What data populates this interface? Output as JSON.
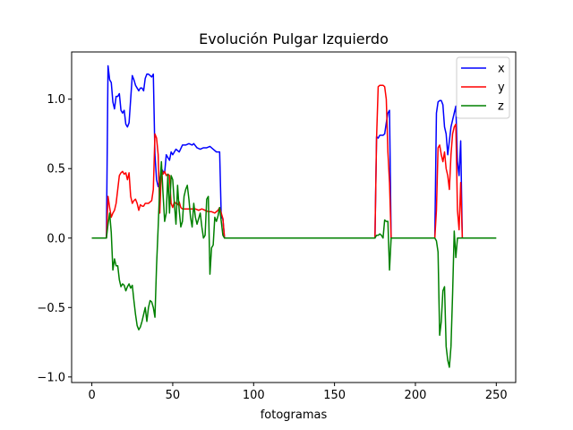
{
  "chart_data": {
    "type": "line",
    "title": "Evolución Pulgar Izquierdo",
    "xlabel": "fotogramas",
    "ylabel": "",
    "xlim": [
      -12.5,
      262
    ],
    "ylim": [
      -1.04,
      1.34
    ],
    "xticks": [
      0,
      50,
      100,
      150,
      200,
      250
    ],
    "yticks": [
      -1.0,
      -0.5,
      0.0,
      0.5,
      1.0
    ],
    "xtick_labels": [
      "0",
      "50",
      "100",
      "150",
      "200",
      "250"
    ],
    "ytick_labels": [
      "−1.0",
      "−0.5",
      "0.0",
      "0.5",
      "1.0"
    ],
    "grid": false,
    "legend_position": "top-right",
    "series": [
      {
        "name": "x",
        "color": "#0000ff",
        "points": [
          [
            0,
            0
          ],
          [
            9,
            0
          ],
          [
            10,
            1.24
          ],
          [
            11,
            1.14
          ],
          [
            12,
            1.12
          ],
          [
            13,
            0.98
          ],
          [
            14,
            0.93
          ],
          [
            15,
            1.02
          ],
          [
            16,
            1.02
          ],
          [
            17,
            1.04
          ],
          [
            18,
            0.92
          ],
          [
            19,
            0.9
          ],
          [
            20,
            0.92
          ],
          [
            21,
            0.82
          ],
          [
            22,
            0.8
          ],
          [
            23,
            0.83
          ],
          [
            24,
            1.0
          ],
          [
            25,
            1.17
          ],
          [
            26,
            1.14
          ],
          [
            27,
            1.1
          ],
          [
            28,
            1.08
          ],
          [
            29,
            1.06
          ],
          [
            30,
            1.08
          ],
          [
            31,
            1.08
          ],
          [
            32,
            1.06
          ],
          [
            33,
            1.15
          ],
          [
            34,
            1.18
          ],
          [
            35,
            1.18
          ],
          [
            36,
            1.17
          ],
          [
            37,
            1.16
          ],
          [
            38,
            1.18
          ],
          [
            39,
            0.6
          ],
          [
            40,
            0.42
          ],
          [
            41,
            0.37
          ],
          [
            42,
            0.42
          ],
          [
            43,
            0.5
          ],
          [
            44,
            0.48
          ],
          [
            45,
            0.47
          ],
          [
            46,
            0.6
          ],
          [
            47,
            0.58
          ],
          [
            48,
            0.56
          ],
          [
            49,
            0.62
          ],
          [
            50,
            0.6
          ],
          [
            52,
            0.64
          ],
          [
            54,
            0.62
          ],
          [
            56,
            0.67
          ],
          [
            58,
            0.67
          ],
          [
            60,
            0.68
          ],
          [
            62,
            0.67
          ],
          [
            63,
            0.68
          ],
          [
            65,
            0.65
          ],
          [
            67,
            0.64
          ],
          [
            69,
            0.65
          ],
          [
            71,
            0.65
          ],
          [
            73,
            0.66
          ],
          [
            75,
            0.64
          ],
          [
            77,
            0.62
          ],
          [
            79,
            0.62
          ],
          [
            80,
            0.15
          ],
          [
            81,
            0.14
          ],
          [
            82,
            0
          ],
          [
            175,
            0
          ],
          [
            176,
            0.73
          ],
          [
            177,
            0.72
          ],
          [
            178,
            0.74
          ],
          [
            180,
            0.74
          ],
          [
            181,
            0.75
          ],
          [
            182,
            0.83
          ],
          [
            183,
            0.9
          ],
          [
            184,
            0.92
          ],
          [
            185,
            0
          ],
          [
            212,
            0
          ],
          [
            213,
            0.9
          ],
          [
            214,
            0.98
          ],
          [
            215,
            0.99
          ],
          [
            216,
            0.99
          ],
          [
            217,
            0.96
          ],
          [
            218,
            0.8
          ],
          [
            219,
            0.75
          ],
          [
            220,
            0.6
          ],
          [
            221,
            0.7
          ],
          [
            222,
            0.8
          ],
          [
            223,
            0.85
          ],
          [
            224,
            0.9
          ],
          [
            225,
            0.95
          ],
          [
            226,
            0.55
          ],
          [
            227,
            0.45
          ],
          [
            228,
            0.7
          ],
          [
            229,
            0.0
          ]
        ]
      },
      {
        "name": "y",
        "color": "#ff0000",
        "points": [
          [
            0,
            0
          ],
          [
            9,
            0
          ],
          [
            10,
            0.3
          ],
          [
            11,
            0.22
          ],
          [
            12,
            0.15
          ],
          [
            13,
            0.18
          ],
          [
            14,
            0.2
          ],
          [
            15,
            0.25
          ],
          [
            16,
            0.35
          ],
          [
            17,
            0.45
          ],
          [
            18,
            0.47
          ],
          [
            19,
            0.48
          ],
          [
            20,
            0.46
          ],
          [
            21,
            0.47
          ],
          [
            22,
            0.42
          ],
          [
            23,
            0.47
          ],
          [
            24,
            0.3
          ],
          [
            25,
            0.25
          ],
          [
            26,
            0.27
          ],
          [
            27,
            0.28
          ],
          [
            28,
            0.25
          ],
          [
            29,
            0.2
          ],
          [
            30,
            0.24
          ],
          [
            31,
            0.23
          ],
          [
            32,
            0.23
          ],
          [
            33,
            0.25
          ],
          [
            34,
            0.25
          ],
          [
            35,
            0.25
          ],
          [
            36,
            0.26
          ],
          [
            37,
            0.27
          ],
          [
            38,
            0.35
          ],
          [
            39,
            0.75
          ],
          [
            40,
            0.72
          ],
          [
            41,
            0.6
          ],
          [
            42,
            0.18
          ],
          [
            43,
            0.5
          ],
          [
            44,
            0.46
          ],
          [
            45,
            0.48
          ],
          [
            46,
            0.45
          ],
          [
            47,
            0.46
          ],
          [
            48,
            0.45
          ],
          [
            49,
            0.25
          ],
          [
            50,
            0.22
          ],
          [
            51,
            0.26
          ],
          [
            52,
            0.25
          ],
          [
            53,
            0.24
          ],
          [
            54,
            0.26
          ],
          [
            55,
            0.22
          ],
          [
            56,
            0.21
          ],
          [
            58,
            0.21
          ],
          [
            60,
            0.21
          ],
          [
            62,
            0.21
          ],
          [
            64,
            0.21
          ],
          [
            66,
            0.2
          ],
          [
            68,
            0.21
          ],
          [
            70,
            0.2
          ],
          [
            72,
            0.19
          ],
          [
            74,
            0.19
          ],
          [
            76,
            0.18
          ],
          [
            78,
            0.2
          ],
          [
            79,
            0.22
          ],
          [
            80,
            0.18
          ],
          [
            81,
            0.14
          ],
          [
            82,
            0
          ],
          [
            175,
            0
          ],
          [
            176,
            0.72
          ],
          [
            177,
            1.09
          ],
          [
            178,
            1.1
          ],
          [
            180,
            1.1
          ],
          [
            181,
            1.09
          ],
          [
            182,
            1.0
          ],
          [
            183,
            0.62
          ],
          [
            184,
            0.4
          ],
          [
            185,
            0
          ],
          [
            212,
            0
          ],
          [
            213,
            0.2
          ],
          [
            214,
            0.65
          ],
          [
            215,
            0.67
          ],
          [
            216,
            0.6
          ],
          [
            217,
            0.55
          ],
          [
            218,
            0.62
          ],
          [
            219,
            0.5
          ],
          [
            220,
            0.45
          ],
          [
            221,
            0.35
          ],
          [
            222,
            0.6
          ],
          [
            223,
            0.75
          ],
          [
            224,
            0.8
          ],
          [
            225,
            0.82
          ],
          [
            226,
            0.2
          ],
          [
            227,
            0.06
          ],
          [
            228,
            0.4
          ],
          [
            229,
            0.0
          ]
        ]
      },
      {
        "name": "z",
        "color": "#008000",
        "points": [
          [
            0,
            0
          ],
          [
            9,
            0
          ],
          [
            10,
            0.1
          ],
          [
            11,
            0.18
          ],
          [
            12,
            0.04
          ],
          [
            13,
            -0.23
          ],
          [
            14,
            -0.15
          ],
          [
            15,
            -0.2
          ],
          [
            16,
            -0.2
          ],
          [
            17,
            -0.3
          ],
          [
            18,
            -0.35
          ],
          [
            19,
            -0.33
          ],
          [
            20,
            -0.34
          ],
          [
            21,
            -0.38
          ],
          [
            22,
            -0.35
          ],
          [
            23,
            -0.33
          ],
          [
            24,
            -0.36
          ],
          [
            25,
            -0.34
          ],
          [
            26,
            -0.45
          ],
          [
            27,
            -0.55
          ],
          [
            28,
            -0.63
          ],
          [
            29,
            -0.66
          ],
          [
            30,
            -0.64
          ],
          [
            31,
            -0.6
          ],
          [
            32,
            -0.55
          ],
          [
            33,
            -0.5
          ],
          [
            34,
            -0.6
          ],
          [
            35,
            -0.5
          ],
          [
            36,
            -0.45
          ],
          [
            37,
            -0.46
          ],
          [
            38,
            -0.5
          ],
          [
            39,
            -0.57
          ],
          [
            40,
            -0.2
          ],
          [
            41,
            0.08
          ],
          [
            42,
            0.38
          ],
          [
            43,
            0.55
          ],
          [
            44,
            0.32
          ],
          [
            45,
            0.12
          ],
          [
            46,
            0.18
          ],
          [
            47,
            0.46
          ],
          [
            48,
            0.18
          ],
          [
            49,
            0.45
          ],
          [
            50,
            0.42
          ],
          [
            51,
            0.25
          ],
          [
            52,
            0.1
          ],
          [
            53,
            0.38
          ],
          [
            54,
            0.2
          ],
          [
            55,
            0.08
          ],
          [
            56,
            0.12
          ],
          [
            57,
            0.3
          ],
          [
            58,
            0.35
          ],
          [
            59,
            0.38
          ],
          [
            60,
            0.28
          ],
          [
            61,
            0.15
          ],
          [
            62,
            0.08
          ],
          [
            63,
            0.25
          ],
          [
            64,
            0.15
          ],
          [
            65,
            0.1
          ],
          [
            66,
            0.14
          ],
          [
            67,
            0.18
          ],
          [
            68,
            0.08
          ],
          [
            69,
            0.0
          ],
          [
            70,
            0.02
          ],
          [
            71,
            0.28
          ],
          [
            72,
            0.3
          ],
          [
            73,
            -0.26
          ],
          [
            74,
            -0.07
          ],
          [
            75,
            -0.05
          ],
          [
            76,
            0.15
          ],
          [
            77,
            0.12
          ],
          [
            78,
            0.16
          ],
          [
            79,
            0.22
          ],
          [
            80,
            0.12
          ],
          [
            81,
            0.02
          ],
          [
            82,
            0
          ],
          [
            175,
            0
          ],
          [
            176,
            0.02
          ],
          [
            177,
            0.02
          ],
          [
            178,
            0.03
          ],
          [
            179,
            0.02
          ],
          [
            180,
            0.0
          ],
          [
            181,
            0.13
          ],
          [
            182,
            0.12
          ],
          [
            183,
            0.12
          ],
          [
            184,
            -0.23
          ],
          [
            185,
            0.0
          ],
          [
            212,
            0
          ],
          [
            213,
            -0.02
          ],
          [
            214,
            -0.1
          ],
          [
            215,
            -0.7
          ],
          [
            216,
            -0.6
          ],
          [
            217,
            -0.38
          ],
          [
            218,
            -0.35
          ],
          [
            219,
            -0.78
          ],
          [
            220,
            -0.88
          ],
          [
            221,
            -0.93
          ],
          [
            222,
            -0.78
          ],
          [
            223,
            -0.4
          ],
          [
            224,
            0.05
          ],
          [
            225,
            -0.14
          ],
          [
            226,
            0.0
          ],
          [
            228,
            0.0
          ],
          [
            250,
            0.0
          ]
        ]
      }
    ]
  }
}
